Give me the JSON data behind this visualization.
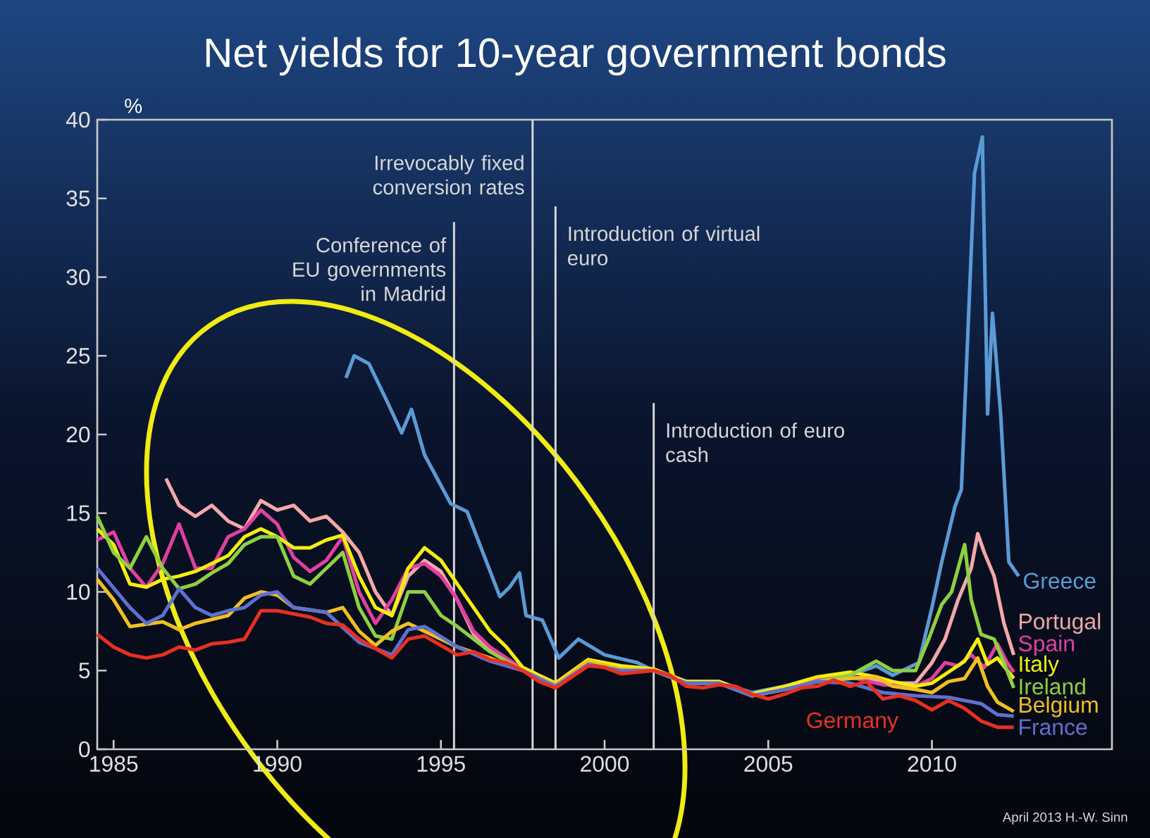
{
  "chart_data": {
    "type": "line",
    "title": "Net yields for 10-year government bonds",
    "ylabel": "%",
    "xlim": [
      1985,
      2016
    ],
    "ylim": [
      0,
      40
    ],
    "xticks": [
      {
        "value": 1985.5,
        "label": "1985"
      },
      {
        "value": 1990.5,
        "label": "1990"
      },
      {
        "value": 1995.5,
        "label": "1995"
      },
      {
        "value": 2000.5,
        "label": "2000"
      },
      {
        "value": 2005.5,
        "label": "2005"
      },
      {
        "value": 2010.5,
        "label": "2010"
      }
    ],
    "yticks": [
      0,
      5,
      10,
      15,
      20,
      25,
      30,
      35,
      40
    ],
    "ref_lines": [
      {
        "axis": "x",
        "value": 1995.9,
        "label": "Conference of EU governments in Madrid",
        "color": "#d8d8d8"
      },
      {
        "axis": "x",
        "value": 1998.3,
        "label": "Irrevocably fixed conversion rates",
        "color": "#d8d8d8"
      },
      {
        "axis": "x",
        "value": 1999.0,
        "label": "Introduction of virtual euro",
        "color": "#d8d8d8"
      },
      {
        "axis": "x",
        "value": 2002.0,
        "label": "Introduction of euro cash",
        "color": "#d8d8d8"
      }
    ],
    "annotations": [
      "April 2013 H.-W. Sinn"
    ],
    "series": [
      {
        "name": "Greece",
        "color": "#5b9bd5",
        "x": [
          1992.6,
          1992.85,
          1993.3,
          1993.9,
          1994.3,
          1994.6,
          1995.0,
          1995.8,
          1996.3,
          1996.8,
          1997.3,
          1997.6,
          1997.9,
          1998.1,
          1998.6,
          1999.1,
          1999.7,
          2000.5,
          2001.5,
          2002,
          2003,
          2004,
          2005,
          2006,
          2007,
          2008,
          2008.8,
          2009.3,
          2010.1,
          2010.5,
          2010.8,
          2011.2,
          2011.4,
          2011.8,
          2012.04,
          2012.2,
          2012.35,
          2012.6,
          2012.85,
          2013.15
        ],
        "values": [
          23.6,
          25.0,
          24.5,
          21.9,
          20.1,
          21.6,
          18.7,
          15.6,
          15.1,
          12.4,
          9.7,
          10.3,
          11.2,
          8.5,
          8.2,
          5.8,
          7.0,
          6.0,
          5.5,
          5.0,
          4.3,
          4.3,
          3.6,
          4.0,
          4.5,
          4.7,
          5.3,
          4.7,
          5.5,
          9.0,
          11.9,
          15.4,
          16.5,
          36.6,
          38.9,
          21.3,
          27.7,
          21.3,
          11.9,
          11.0
        ]
      },
      {
        "name": "Portugal",
        "color": "#f4a8a8",
        "x": [
          1987.1,
          1987.5,
          1988,
          1988.5,
          1989,
          1989.5,
          1990,
          1990.5,
          1991,
          1991.5,
          1992,
          1992.5,
          1993,
          1993.5,
          1994,
          1994.5,
          1995,
          1995.5,
          1996,
          1996.5,
          1997,
          1998,
          1999,
          2000,
          2001,
          2002,
          2003,
          2004,
          2005,
          2006,
          2007,
          2008,
          2008.8,
          2009.3,
          2010,
          2010.5,
          2010.9,
          2011.3,
          2011.7,
          2011.9,
          2012.1,
          2012.4,
          2012.7,
          2013
        ],
        "values": [
          17.2,
          15.5,
          14.8,
          15.5,
          14.5,
          14.0,
          15.8,
          15.2,
          15.5,
          14.5,
          14.8,
          13.8,
          12.5,
          10.0,
          8.5,
          11.0,
          12.0,
          11.3,
          9.5,
          7.3,
          6.4,
          5.1,
          4.2,
          5.6,
          5.2,
          5.0,
          4.2,
          4.2,
          3.4,
          3.8,
          4.4,
          4.6,
          4.4,
          4.2,
          4.2,
          5.5,
          7.0,
          9.5,
          11.5,
          13.7,
          12.5,
          11.0,
          8.0,
          6.0
        ]
      },
      {
        "name": "Spain",
        "color": "#e040a0",
        "x": [
          1985,
          1985.5,
          1986,
          1986.5,
          1987,
          1987.5,
          1988,
          1988.5,
          1989,
          1989.5,
          1990,
          1990.5,
          1991,
          1991.5,
          1992,
          1992.5,
          1993,
          1993.5,
          1994,
          1994.5,
          1995,
          1995.5,
          1996,
          1996.5,
          1997,
          1998,
          1999,
          2000,
          2001,
          2002,
          2003,
          2004,
          2005,
          2006,
          2007,
          2008,
          2009,
          2010,
          2010.5,
          2010.9,
          2011.3,
          2011.7,
          2012.1,
          2012.5,
          2012.8,
          2013
        ],
        "values": [
          13.3,
          13.8,
          11.5,
          10.3,
          11.8,
          14.3,
          11.5,
          11.5,
          13.5,
          14.0,
          15.2,
          14.3,
          12.2,
          11.3,
          12.0,
          13.5,
          10.0,
          8.0,
          9.5,
          11.5,
          11.8,
          11.0,
          9.5,
          7.5,
          6.5,
          5.1,
          4.1,
          5.5,
          5.2,
          5.0,
          4.2,
          4.2,
          3.4,
          3.8,
          4.4,
          4.6,
          4.1,
          4.0,
          4.5,
          5.5,
          5.3,
          6.0,
          5.2,
          6.7,
          5.5,
          4.9
        ]
      },
      {
        "name": "Italy",
        "color": "#f5ee10",
        "x": [
          1985,
          1985.5,
          1986,
          1986.5,
          1987,
          1987.5,
          1988,
          1989,
          1989.5,
          1990,
          1990.5,
          1991,
          1991.5,
          1992,
          1992.5,
          1993,
          1993.5,
          1994,
          1994.5,
          1995,
          1995.5,
          1996,
          1996.5,
          1997,
          1997.5,
          1998,
          1999,
          2000,
          2001,
          2002,
          2003,
          2004,
          2005,
          2006,
          2007,
          2008,
          2008.8,
          2009.3,
          2010,
          2010.5,
          2011,
          2011.5,
          2011.9,
          2012.2,
          2012.5,
          2013
        ],
        "values": [
          14.0,
          13.0,
          10.5,
          10.3,
          10.8,
          11.0,
          11.3,
          12.3,
          13.5,
          14.0,
          13.5,
          12.8,
          12.8,
          13.3,
          13.6,
          11.0,
          9.0,
          8.5,
          11.5,
          12.8,
          12.0,
          10.5,
          9.0,
          7.5,
          6.5,
          5.2,
          4.2,
          5.7,
          5.3,
          5.1,
          4.3,
          4.3,
          3.5,
          4.0,
          4.6,
          4.9,
          4.6,
          4.3,
          4.0,
          4.2,
          4.9,
          5.6,
          7.0,
          5.4,
          5.8,
          4.5
        ]
      },
      {
        "name": "Ireland",
        "color": "#8ed040",
        "x": [
          1985,
          1985.5,
          1986,
          1986.5,
          1987,
          1987.5,
          1988,
          1988.5,
          1989,
          1989.5,
          1990,
          1990.5,
          1991,
          1991.5,
          1992,
          1992.5,
          1993,
          1993.5,
          1994,
          1994.5,
          1995,
          1995.5,
          1996,
          1996.5,
          1997,
          1998,
          1999,
          2000,
          2001,
          2002,
          2003,
          2004,
          2005,
          2006,
          2007,
          2008,
          2008.8,
          2009.3,
          2010,
          2010.4,
          2010.8,
          2011.1,
          2011.5,
          2011.7,
          2012,
          2012.4,
          2012.7,
          2013
        ],
        "values": [
          14.8,
          12.5,
          11.5,
          13.5,
          11.5,
          10.2,
          10.5,
          11.2,
          11.8,
          13.0,
          13.5,
          13.5,
          11.0,
          10.5,
          11.5,
          12.5,
          9.0,
          7.2,
          7.0,
          10.0,
          10.0,
          8.5,
          7.8,
          7.0,
          6.2,
          5.0,
          4.1,
          5.5,
          5.1,
          5.0,
          4.2,
          4.2,
          3.4,
          3.8,
          4.3,
          4.7,
          5.6,
          5.0,
          5.0,
          7.0,
          9.2,
          10.0,
          13.0,
          9.5,
          7.3,
          7.0,
          5.5,
          3.9
        ]
      },
      {
        "name": "Belgium",
        "color": "#f0c020",
        "x": [
          1985,
          1985.5,
          1986,
          1987,
          1987.5,
          1988,
          1989,
          1989.5,
          1990,
          1990.5,
          1991,
          1992,
          1992.5,
          1993,
          1993.5,
          1994,
          1994.5,
          1995,
          1996,
          1997,
          1998,
          1999,
          2000,
          2001,
          2002,
          2003,
          2004,
          2005,
          2006,
          2007,
          2008,
          2008.8,
          2009.3,
          2010,
          2010.5,
          2011,
          2011.5,
          2011.9,
          2012.2,
          2012.5,
          2013
        ],
        "values": [
          10.8,
          9.5,
          7.8,
          8.1,
          7.6,
          8.0,
          8.5,
          9.6,
          10.0,
          9.8,
          9.0,
          8.7,
          9.0,
          7.5,
          6.6,
          7.5,
          8.0,
          7.5,
          6.5,
          5.8,
          5.0,
          4.1,
          5.6,
          5.1,
          5.0,
          4.2,
          4.2,
          3.4,
          3.8,
          4.3,
          4.5,
          4.6,
          4.0,
          3.8,
          3.6,
          4.3,
          4.5,
          5.8,
          4.0,
          3.0,
          2.4
        ]
      },
      {
        "name": "France",
        "color": "#6070d0",
        "x": [
          1985,
          1986,
          1986.5,
          1987,
          1987.5,
          1988,
          1988.5,
          1989,
          1989.5,
          1990,
          1990.5,
          1991,
          1992,
          1993,
          1994,
          1994.5,
          1995,
          1996,
          1997,
          1998,
          1999,
          2000,
          2001,
          2002,
          2003,
          2004,
          2005,
          2006,
          2007,
          2008,
          2009,
          2010,
          2011,
          2011.5,
          2012,
          2012.5,
          2013
        ],
        "values": [
          11.5,
          9.0,
          8.0,
          8.5,
          10.2,
          9.0,
          8.5,
          8.8,
          9.0,
          9.8,
          10.0,
          9.0,
          8.7,
          6.8,
          6.0,
          7.6,
          7.8,
          6.5,
          5.6,
          5.0,
          4.0,
          5.4,
          5.0,
          5.0,
          4.2,
          4.2,
          3.4,
          3.8,
          4.3,
          4.2,
          3.6,
          3.4,
          3.3,
          3.1,
          2.9,
          2.2,
          2.1
        ]
      },
      {
        "name": "Germany",
        "color": "#e83020",
        "x": [
          1985,
          1985.5,
          1986,
          1986.5,
          1987,
          1987.5,
          1988,
          1988.5,
          1989,
          1989.5,
          1990,
          1990.5,
          1991,
          1991.5,
          1992,
          1992.5,
          1993,
          1993.5,
          1994,
          1994.5,
          1995,
          1995.5,
          1996,
          1996.5,
          1997,
          1997.5,
          1998,
          1998.5,
          1999,
          1999.5,
          2000,
          2000.5,
          2001,
          2001.5,
          2002,
          2002.5,
          2003,
          2003.5,
          2004,
          2004.5,
          2005,
          2005.5,
          2006,
          2006.5,
          2007,
          2007.5,
          2008,
          2008.5,
          2009,
          2009.5,
          2010,
          2010.5,
          2011,
          2011.5,
          2012,
          2012.5,
          2013
        ],
        "values": [
          7.3,
          6.5,
          6.0,
          5.8,
          6.0,
          6.5,
          6.3,
          6.7,
          6.8,
          7.0,
          8.8,
          8.8,
          8.6,
          8.4,
          8.0,
          7.9,
          7.0,
          6.4,
          5.8,
          7.0,
          7.2,
          6.6,
          6.0,
          6.2,
          5.7,
          5.5,
          5.0,
          4.3,
          3.9,
          4.6,
          5.3,
          5.2,
          4.8,
          4.9,
          5.0,
          4.7,
          4.0,
          3.9,
          4.1,
          4.0,
          3.5,
          3.2,
          3.5,
          3.9,
          4.0,
          4.4,
          4.0,
          4.3,
          3.2,
          3.4,
          3.1,
          2.5,
          3.1,
          2.6,
          1.8,
          1.4,
          1.4
        ]
      }
    ]
  }
}
